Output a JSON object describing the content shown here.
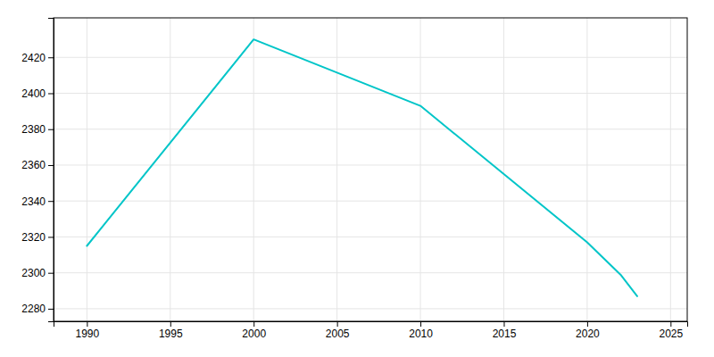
{
  "chart_data": {
    "type": "line",
    "x": [
      1990,
      2000,
      2010,
      2020,
      2022,
      2023
    ],
    "values": [
      2315,
      2430,
      2393,
      2317,
      2299,
      2287
    ],
    "color": "#00C5C8",
    "xlim": [
      1988,
      2026
    ],
    "ylim": [
      2273,
      2442
    ],
    "xticks": [
      1990,
      1995,
      2000,
      2005,
      2010,
      2015,
      2020,
      2025
    ],
    "yticks": [
      2280,
      2300,
      2320,
      2340,
      2360,
      2380,
      2400,
      2420
    ],
    "grid": true
  }
}
